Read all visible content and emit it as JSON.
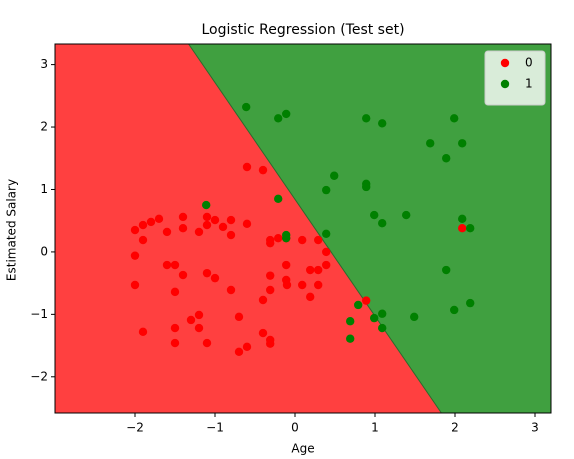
{
  "chart_data": {
    "type": "scatter",
    "title": "Logistic Regression (Test set)",
    "x_label": "Age",
    "y_label": "Estimated Salary",
    "xlim": [
      -3.0,
      3.2
    ],
    "ylim": [
      -2.58,
      3.33
    ],
    "xticks": [
      {
        "value": -2,
        "label": "−2"
      },
      {
        "value": -1,
        "label": "−1"
      },
      0,
      1,
      2,
      3
    ],
    "yticks": [
      {
        "value": -2,
        "label": "−2"
      },
      {
        "value": -1,
        "label": "−1"
      },
      0,
      1,
      2,
      3
    ],
    "legend": "upper right",
    "decision_boundary": {
      "x": [
        -1.33,
        1.83
      ],
      "y": [
        3.33,
        -2.58
      ],
      "colors": [
        "#ff4040",
        "#40a040"
      ]
    },
    "series": [
      {
        "name": "0",
        "color": "#ff0000",
        "x": [
          -2.0,
          -1.9,
          -1.8,
          -1.7,
          -2.0,
          -2.0,
          -1.9,
          -1.9,
          -1.6,
          -1.6,
          -1.5,
          -1.5,
          -1.4,
          -1.5,
          -1.5,
          -1.4,
          -1.4,
          -1.3,
          -1.2,
          -1.2,
          -1.1,
          -1.2,
          -1.1,
          -1.1,
          -1.0,
          -1.1,
          -1.0,
          -0.9,
          -0.8,
          -0.8,
          -0.8,
          -0.7,
          -0.7,
          -0.6,
          -0.6,
          -0.6,
          -0.4,
          -0.4,
          -0.31,
          -0.31,
          -0.31,
          -0.31,
          -0.31,
          -0.31,
          -0.4,
          -0.21,
          -0.11,
          -0.11,
          -0.11,
          -0.1,
          0.09,
          0.09,
          0.19,
          0.19,
          0.29,
          0.29,
          0.29,
          0.39,
          0.39,
          0.89,
          2.09
        ],
        "values": [
          0.35,
          0.43,
          0.48,
          0.53,
          -0.06,
          -0.53,
          0.19,
          -1.28,
          0.32,
          -0.21,
          -0.21,
          -0.64,
          -0.37,
          -1.22,
          -1.46,
          0.56,
          0.38,
          -1.09,
          -1.22,
          -1.01,
          -1.46,
          0.32,
          0.43,
          0.56,
          0.51,
          -0.34,
          -0.42,
          0.4,
          0.51,
          0.27,
          -0.61,
          -1.04,
          -1.6,
          1.36,
          -1.52,
          0.45,
          1.31,
          -1.3,
          0.19,
          0.14,
          -0.38,
          -0.61,
          -1.41,
          -1.47,
          -0.77,
          0.22,
          0.22,
          -0.21,
          -0.45,
          -0.53,
          0.19,
          -0.53,
          -0.29,
          -0.72,
          -0.29,
          -0.53,
          0.19,
          0.0,
          -0.21,
          -0.78,
          0.38
        ]
      },
      {
        "name": "1",
        "color": "#008000",
        "x": [
          -0.61,
          -0.21,
          -0.11,
          0.89,
          1.09,
          1.69,
          1.89,
          1.99,
          2.09,
          0.49,
          0.39,
          0.89,
          0.89,
          -1.11,
          -0.21,
          -0.11,
          -0.11,
          0.39,
          0.99,
          1.09,
          1.39,
          2.09,
          2.19,
          1.89,
          2.19,
          1.99,
          0.79,
          0.99,
          1.09,
          1.09,
          1.49,
          0.69,
          0.69
        ],
        "values": [
          2.32,
          2.14,
          2.21,
          2.14,
          2.06,
          1.74,
          1.5,
          2.14,
          1.74,
          1.22,
          0.99,
          1.04,
          1.09,
          0.75,
          0.85,
          0.27,
          0.22,
          0.29,
          0.59,
          0.46,
          0.59,
          0.53,
          0.38,
          -0.29,
          -0.82,
          -0.93,
          -0.85,
          -1.06,
          -0.99,
          -1.22,
          -1.04,
          -1.11,
          -1.39
        ]
      }
    ]
  }
}
